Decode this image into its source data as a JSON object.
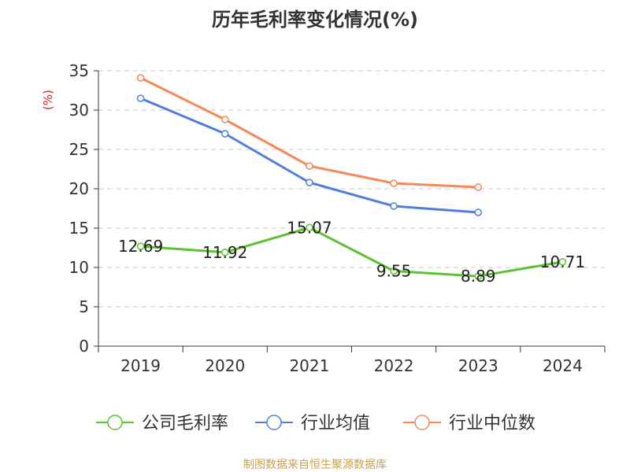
{
  "chart_data": {
    "type": "line",
    "title": "历年毛利率变化情况(%)",
    "ylabel": "(%)",
    "xlabel": "",
    "categories": [
      "2019",
      "2020",
      "2021",
      "2022",
      "2023",
      "2024"
    ],
    "ylim": [
      0,
      35
    ],
    "yticks": [
      0,
      5,
      10,
      15,
      20,
      25,
      30,
      35
    ],
    "grid": "horizontal dashed",
    "legend_position": "bottom",
    "series": [
      {
        "name": "公司毛利率",
        "color": "#5cc232",
        "values": [
          12.69,
          11.92,
          15.07,
          9.55,
          8.89,
          10.71
        ],
        "data_labels": [
          "12.69",
          "11.92",
          "15.07",
          "9.55",
          "8.89",
          "10.71"
        ]
      },
      {
        "name": "行业均值",
        "color": "#4f7fdc",
        "values": [
          31.5,
          27.0,
          20.8,
          17.8,
          17.0,
          null
        ]
      },
      {
        "name": "行业中位数",
        "color": "#f4895a",
        "values": [
          34.1,
          28.8,
          22.9,
          20.7,
          20.2,
          null
        ]
      }
    ]
  },
  "source": "制图数据来自恒生聚源数据库"
}
